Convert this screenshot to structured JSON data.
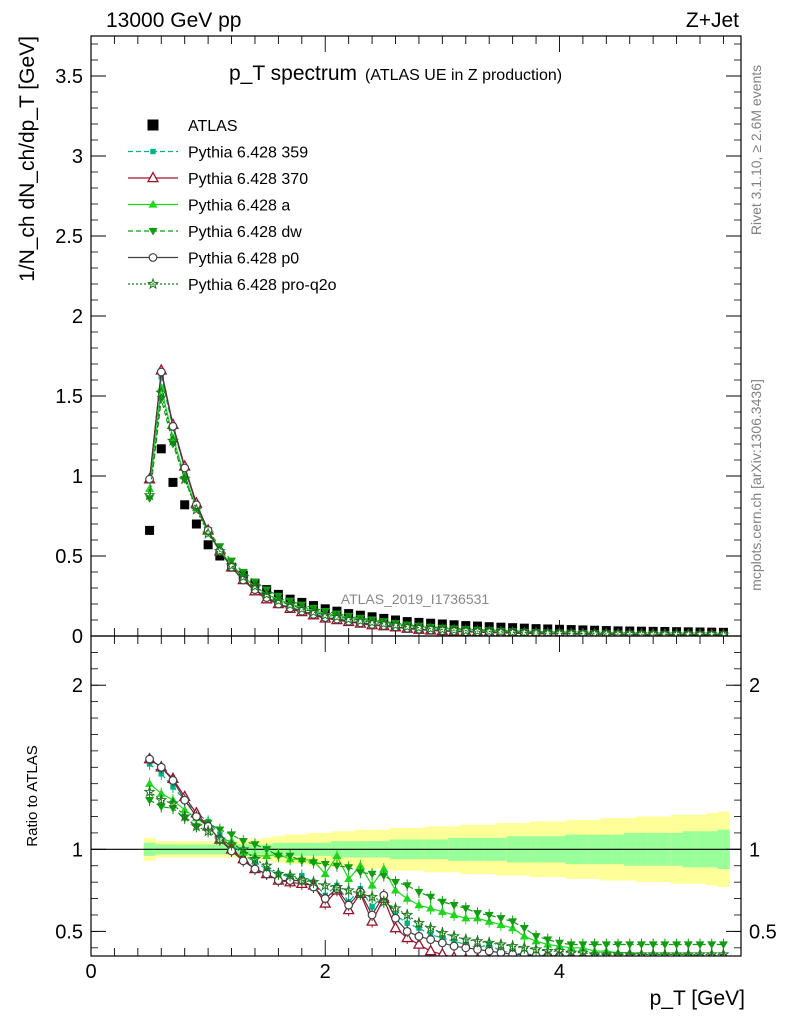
{
  "header": {
    "energy_label": "13000 GeV pp",
    "process_label": "Z+Jet"
  },
  "side_labels": {
    "rivet": "Rivet 3.1.10, ≥ 2.6M events",
    "mcplots": "mcplots.cern.ch [arXiv:1306.3436]"
  },
  "chart_data": [
    {
      "type": "scatter",
      "title": "p_T spectrum",
      "subtitle": "(ATLAS UE in Z production)",
      "analysis_label": "ATLAS_2019_I1736531",
      "xlabel": "p_T [GeV]",
      "ylabel": "1/N_ch dN_ch/dp_T [GeV]",
      "xlim": [
        0,
        5.55
      ],
      "ylim": [
        0,
        3.75
      ],
      "xticks": [
        0,
        2,
        4
      ],
      "yticks": [
        0,
        0.5,
        1,
        1.5,
        2,
        2.5,
        3,
        3.5
      ],
      "x": [
        0.5,
        0.6,
        0.7,
        0.8,
        0.9,
        1.0,
        1.1,
        1.2,
        1.3,
        1.4,
        1.5,
        1.6,
        1.7,
        1.8,
        1.9,
        2.0,
        2.1,
        2.2,
        2.3,
        2.4,
        2.5,
        2.6,
        2.7,
        2.8,
        2.9,
        3.0,
        3.1,
        3.2,
        3.3,
        3.4,
        3.5,
        3.6,
        3.7,
        3.8,
        3.9,
        4.0,
        4.1,
        4.2,
        4.3,
        4.4,
        4.5,
        4.6,
        4.7,
        4.8,
        4.9,
        5.0,
        5.1,
        5.2,
        5.3,
        5.4
      ],
      "series": [
        {
          "name": "ATLAS",
          "color": "#000000",
          "marker": "filled-square",
          "line": "none",
          "values": [
            0.66,
            1.17,
            0.96,
            0.82,
            0.7,
            0.57,
            0.5,
            0.43,
            0.38,
            0.33,
            0.29,
            0.26,
            0.23,
            0.21,
            0.19,
            0.17,
            0.155,
            0.14,
            0.13,
            0.12,
            0.11,
            0.1,
            0.09,
            0.085,
            0.08,
            0.075,
            0.07,
            0.065,
            0.062,
            0.058,
            0.055,
            0.052,
            0.049,
            0.046,
            0.044,
            0.042,
            0.04,
            0.038,
            0.036,
            0.034,
            0.032,
            0.031,
            0.03,
            0.029,
            0.028,
            0.027,
            0.026,
            0.025,
            0.024,
            0.023
          ]
        },
        {
          "name": "Pythia 6.428 359",
          "color": "#00b386",
          "marker": "small-square",
          "line": "dashed",
          "values": [
            0.97,
            1.62,
            1.3,
            1.05,
            0.82,
            0.66,
            0.53,
            0.44,
            0.36,
            0.29,
            0.24,
            0.21,
            0.18,
            0.16,
            0.14,
            0.12,
            0.11,
            0.095,
            0.085,
            0.075,
            0.07,
            0.06,
            0.05,
            0.045,
            0.04,
            0.035,
            0.032,
            0.03,
            0.027,
            0.025,
            0.022,
            0.02,
            0.018,
            0.017,
            0.016,
            0.015,
            0.014,
            0.013,
            0.012,
            0.011,
            0.011,
            0.01,
            0.01,
            0.009,
            0.009,
            0.008,
            0.008,
            0.008,
            0.007,
            0.007
          ]
        },
        {
          "name": "Pythia 6.428 370",
          "color": "#a0102a",
          "marker": "open-triangle",
          "line": "solid",
          "values": [
            0.98,
            1.66,
            1.32,
            1.06,
            0.83,
            0.66,
            0.53,
            0.43,
            0.35,
            0.28,
            0.23,
            0.2,
            0.17,
            0.15,
            0.13,
            0.11,
            0.1,
            0.088,
            0.078,
            0.068,
            0.062,
            0.055,
            0.046,
            0.04,
            0.035,
            0.031,
            0.028,
            0.026,
            0.024,
            0.022,
            0.02,
            0.018,
            0.016,
            0.015,
            0.014,
            0.013,
            0.012,
            0.011,
            0.011,
            0.01,
            0.01,
            0.009,
            0.009,
            0.008,
            0.008,
            0.008,
            0.007,
            0.007,
            0.007,
            0.006
          ]
        },
        {
          "name": "Pythia 6.428 a",
          "color": "#1ed61e",
          "marker": "filled-triangle",
          "line": "solid",
          "values": [
            0.92,
            1.55,
            1.24,
            1.0,
            0.8,
            0.65,
            0.53,
            0.45,
            0.37,
            0.31,
            0.26,
            0.23,
            0.2,
            0.18,
            0.16,
            0.14,
            0.13,
            0.115,
            0.105,
            0.095,
            0.085,
            0.075,
            0.065,
            0.058,
            0.052,
            0.047,
            0.043,
            0.04,
            0.036,
            0.033,
            0.03,
            0.027,
            0.024,
            0.022,
            0.02,
            0.019,
            0.018,
            0.017,
            0.016,
            0.015,
            0.014,
            0.013,
            0.012,
            0.012,
            0.011,
            0.011,
            0.01,
            0.01,
            0.01,
            0.009
          ]
        },
        {
          "name": "Pythia 6.428 dw",
          "color": "#0f9e0f",
          "marker": "filled-triangle-down",
          "line": "dashed",
          "values": [
            0.86,
            1.48,
            1.2,
            0.98,
            0.8,
            0.66,
            0.56,
            0.47,
            0.4,
            0.34,
            0.29,
            0.25,
            0.22,
            0.195,
            0.175,
            0.155,
            0.14,
            0.125,
            0.112,
            0.102,
            0.092,
            0.08,
            0.07,
            0.063,
            0.057,
            0.051,
            0.046,
            0.042,
            0.038,
            0.035,
            0.032,
            0.029,
            0.026,
            0.024,
            0.022,
            0.02,
            0.019,
            0.018,
            0.017,
            0.016,
            0.015,
            0.014,
            0.013,
            0.012,
            0.012,
            0.011,
            0.011,
            0.01,
            0.01,
            0.01
          ]
        },
        {
          "name": "Pythia 6.428 p0",
          "color": "#404040",
          "marker": "open-circle",
          "line": "solid",
          "values": [
            0.98,
            1.65,
            1.31,
            1.05,
            0.82,
            0.66,
            0.53,
            0.43,
            0.35,
            0.29,
            0.24,
            0.2,
            0.175,
            0.155,
            0.135,
            0.115,
            0.105,
            0.092,
            0.082,
            0.072,
            0.065,
            0.057,
            0.048,
            0.042,
            0.037,
            0.033,
            0.03,
            0.027,
            0.025,
            0.023,
            0.021,
            0.019,
            0.017,
            0.016,
            0.015,
            0.014,
            0.013,
            0.012,
            0.011,
            0.011,
            0.01,
            0.01,
            0.009,
            0.009,
            0.008,
            0.008,
            0.008,
            0.007,
            0.007,
            0.007
          ]
        },
        {
          "name": "Pythia 6.428 pro-q2o",
          "color": "#1a7a1a",
          "marker": "open-star",
          "line": "dotted",
          "values": [
            0.88,
            1.52,
            1.22,
            0.98,
            0.79,
            0.64,
            0.53,
            0.44,
            0.37,
            0.31,
            0.26,
            0.22,
            0.195,
            0.17,
            0.15,
            0.13,
            0.12,
            0.105,
            0.095,
            0.085,
            0.077,
            0.068,
            0.058,
            0.052,
            0.046,
            0.041,
            0.037,
            0.034,
            0.031,
            0.028,
            0.026,
            0.023,
            0.021,
            0.019,
            0.018,
            0.017,
            0.016,
            0.015,
            0.014,
            0.013,
            0.012,
            0.012,
            0.011,
            0.011,
            0.01,
            0.01,
            0.009,
            0.009,
            0.009,
            0.008
          ]
        }
      ]
    },
    {
      "type": "scatter",
      "title": "",
      "xlabel": "p_T [GeV]",
      "ylabel": "Ratio to ATLAS",
      "xlim": [
        0,
        5.55
      ],
      "ylim": [
        0.35,
        2.3
      ],
      "xticks": [
        0,
        2,
        4
      ],
      "yticks": [
        0.5,
        1,
        2
      ],
      "reference_line": 1,
      "band_x_edges": [
        0.45,
        0.55,
        0.65,
        0.75,
        0.85,
        0.95,
        1.05,
        1.15,
        1.25,
        1.35,
        1.45,
        1.55,
        1.65,
        1.75,
        1.85,
        1.95,
        2.05,
        2.15,
        2.25,
        2.35,
        2.45,
        2.55,
        2.65,
        2.75,
        2.85,
        2.95,
        3.05,
        3.15,
        3.25,
        3.35,
        3.45,
        3.55,
        3.65,
        3.75,
        3.85,
        3.95,
        4.05,
        4.15,
        4.25,
        4.35,
        4.45,
        4.55,
        4.65,
        4.75,
        4.85,
        4.95,
        5.05,
        5.15,
        5.25,
        5.35,
        5.45
      ],
      "band_stat_halfwidth": [
        0.04,
        0.03,
        0.03,
        0.03,
        0.03,
        0.03,
        0.03,
        0.03,
        0.03,
        0.03,
        0.03,
        0.04,
        0.04,
        0.04,
        0.04,
        0.04,
        0.05,
        0.05,
        0.05,
        0.05,
        0.05,
        0.06,
        0.06,
        0.06,
        0.06,
        0.06,
        0.07,
        0.07,
        0.07,
        0.07,
        0.07,
        0.08,
        0.08,
        0.08,
        0.08,
        0.08,
        0.09,
        0.09,
        0.09,
        0.09,
        0.09,
        0.1,
        0.1,
        0.1,
        0.1,
        0.1,
        0.11,
        0.11,
        0.11,
        0.12
      ],
      "band_total_halfwidth": [
        0.07,
        0.05,
        0.05,
        0.05,
        0.05,
        0.05,
        0.05,
        0.05,
        0.06,
        0.06,
        0.07,
        0.08,
        0.09,
        0.09,
        0.1,
        0.1,
        0.11,
        0.11,
        0.12,
        0.12,
        0.12,
        0.13,
        0.13,
        0.13,
        0.14,
        0.14,
        0.14,
        0.15,
        0.15,
        0.15,
        0.16,
        0.16,
        0.16,
        0.17,
        0.17,
        0.17,
        0.18,
        0.18,
        0.18,
        0.19,
        0.19,
        0.19,
        0.2,
        0.2,
        0.2,
        0.21,
        0.21,
        0.21,
        0.22,
        0.23
      ],
      "series": [
        {
          "name": "Pythia 6.428 359",
          "values": [
            1.52,
            1.46,
            1.38,
            1.3,
            1.22,
            1.17,
            1.09,
            1.03,
            0.97,
            0.92,
            0.88,
            0.85,
            0.83,
            0.84,
            0.8,
            0.72,
            0.78,
            0.68,
            0.76,
            0.65,
            0.72,
            0.6,
            0.55,
            0.52,
            0.48,
            0.46,
            0.44,
            0.42,
            0.4,
            0.42,
            0.38,
            0.37,
            0.36,
            0.36,
            0.35,
            0.35,
            0.34,
            0.34,
            0.34,
            0.34,
            0.34,
            0.33,
            0.33,
            0.33,
            0.33,
            0.33,
            0.33,
            0.33,
            0.33,
            0.33
          ]
        },
        {
          "name": "Pythia 6.428 370",
          "values": [
            1.55,
            1.5,
            1.43,
            1.32,
            1.22,
            1.14,
            1.06,
            1.0,
            0.94,
            0.88,
            0.85,
            0.81,
            0.8,
            0.79,
            0.78,
            0.67,
            0.75,
            0.63,
            0.73,
            0.56,
            0.7,
            0.52,
            0.46,
            0.42,
            0.38,
            0.36,
            0.34,
            0.33,
            0.33,
            0.33,
            0.33,
            0.33,
            0.33,
            0.33,
            0.33,
            0.33,
            0.33,
            0.33,
            0.33,
            0.33,
            0.33,
            0.33,
            0.33,
            0.33,
            0.33,
            0.33,
            0.33,
            0.33,
            0.33,
            0.33
          ]
        },
        {
          "name": "Pythia 6.428 a",
          "values": [
            1.4,
            1.34,
            1.3,
            1.24,
            1.19,
            1.14,
            1.06,
            1.05,
            0.98,
            0.96,
            0.96,
            0.97,
            0.94,
            0.94,
            0.93,
            0.85,
            0.96,
            0.82,
            0.9,
            0.78,
            0.88,
            0.75,
            0.7,
            0.66,
            0.64,
            0.62,
            0.6,
            0.58,
            0.58,
            0.56,
            0.54,
            0.52,
            0.47,
            0.44,
            0.42,
            0.41,
            0.4,
            0.4,
            0.38,
            0.38,
            0.37,
            0.37,
            0.36,
            0.36,
            0.36,
            0.36,
            0.36,
            0.35,
            0.35,
            0.35
          ]
        },
        {
          "name": "Pythia 6.428 dw",
          "values": [
            1.3,
            1.26,
            1.25,
            1.19,
            1.14,
            1.16,
            1.12,
            1.09,
            1.05,
            1.03,
            1.0,
            0.96,
            0.96,
            0.93,
            0.92,
            0.91,
            0.9,
            0.89,
            0.86,
            0.85,
            0.84,
            0.8,
            0.78,
            0.74,
            0.71,
            0.68,
            0.66,
            0.64,
            0.61,
            0.6,
            0.58,
            0.56,
            0.52,
            0.47,
            0.45,
            0.43,
            0.42,
            0.42,
            0.42,
            0.42,
            0.42,
            0.42,
            0.42,
            0.42,
            0.42,
            0.42,
            0.42,
            0.42,
            0.42,
            0.42
          ]
        },
        {
          "name": "Pythia 6.428 p0",
          "values": [
            1.55,
            1.5,
            1.42,
            1.3,
            1.2,
            1.14,
            1.06,
            0.99,
            0.93,
            0.88,
            0.85,
            0.81,
            0.81,
            0.81,
            0.77,
            0.7,
            0.76,
            0.66,
            0.74,
            0.6,
            0.72,
            0.58,
            0.5,
            0.47,
            0.45,
            0.43,
            0.41,
            0.4,
            0.39,
            0.38,
            0.37,
            0.36,
            0.36,
            0.35,
            0.35,
            0.35,
            0.34,
            0.34,
            0.34,
            0.34,
            0.34,
            0.34,
            0.34,
            0.34,
            0.34,
            0.34,
            0.34,
            0.34,
            0.34,
            0.34
          ]
        },
        {
          "name": "Pythia 6.428 pro-q2o",
          "values": [
            1.35,
            1.3,
            1.28,
            1.2,
            1.14,
            1.11,
            1.06,
            1.03,
            1.0,
            0.94,
            0.9,
            0.85,
            0.84,
            0.81,
            0.8,
            0.78,
            0.77,
            0.75,
            0.73,
            0.71,
            0.68,
            0.64,
            0.6,
            0.55,
            0.52,
            0.49,
            0.47,
            0.45,
            0.44,
            0.43,
            0.42,
            0.41,
            0.4,
            0.39,
            0.38,
            0.38,
            0.37,
            0.37,
            0.36,
            0.36,
            0.36,
            0.36,
            0.36,
            0.36,
            0.36,
            0.36,
            0.36,
            0.36,
            0.36,
            0.36
          ]
        }
      ]
    }
  ]
}
